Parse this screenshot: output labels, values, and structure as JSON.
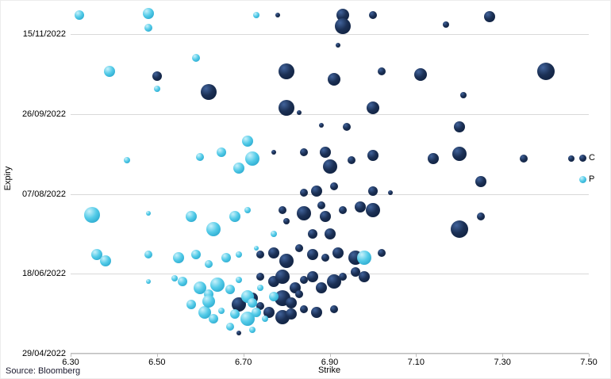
{
  "chart_data": {
    "type": "scatter",
    "subtype": "bubble",
    "title": "",
    "xlabel": "Strike",
    "ylabel": "Expiry",
    "source_note": "Source: Bloomberg",
    "x_axis": {
      "min": 6.3,
      "max": 7.5,
      "ticks": [
        6.3,
        6.5,
        6.7,
        6.9,
        7.1,
        7.3,
        7.5
      ],
      "tick_labels": [
        "6.30",
        "6.50",
        "6.70",
        "6.90",
        "7.10",
        "7.30",
        "7.50"
      ]
    },
    "y_axis": {
      "unit": "days since 29/04/2022 (estimated from gridlines)",
      "min": 0,
      "max": 217,
      "ticks": [
        {
          "days": 0,
          "label": "29/04/2022"
        },
        {
          "days": 50,
          "label": "18/06/2022"
        },
        {
          "days": 100,
          "label": "07/08/2022"
        },
        {
          "days": 150,
          "label": "26/09/2022"
        },
        {
          "days": 200,
          "label": "15/11/2022"
        }
      ],
      "grid": true
    },
    "legend": [
      {
        "name": "C",
        "color": "#16294d"
      },
      {
        "name": "P",
        "color": "#4cc7e6"
      }
    ],
    "legend_position": "right",
    "point_format": "[strike, expiry_days_after_29_04_2022, radius_px]",
    "series": [
      {
        "name": "C",
        "color": "#16294d",
        "gradient": [
          "#41639b",
          "#1b3055",
          "#0a1a36"
        ],
        "points": [
          [
            6.78,
            212,
            3
          ],
          [
            6.93,
            212,
            8
          ],
          [
            7.0,
            212,
            5
          ],
          [
            7.17,
            206,
            4
          ],
          [
            7.27,
            211,
            7
          ],
          [
            6.93,
            205,
            10
          ],
          [
            6.92,
            193,
            3
          ],
          [
            6.5,
            174,
            6
          ],
          [
            6.62,
            164,
            10
          ],
          [
            6.8,
            177,
            10
          ],
          [
            6.91,
            172,
            8
          ],
          [
            7.02,
            177,
            5
          ],
          [
            7.11,
            175,
            8
          ],
          [
            7.4,
            177,
            11
          ],
          [
            6.8,
            154,
            10
          ],
          [
            6.83,
            151,
            3
          ],
          [
            7.0,
            154,
            8
          ],
          [
            6.88,
            143,
            3
          ],
          [
            6.94,
            142,
            5
          ],
          [
            7.21,
            162,
            4
          ],
          [
            7.2,
            142,
            7
          ],
          [
            6.77,
            126,
            3
          ],
          [
            6.84,
            126,
            5
          ],
          [
            6.89,
            126,
            7
          ],
          [
            6.9,
            117,
            9
          ],
          [
            6.95,
            121,
            5
          ],
          [
            7.0,
            124,
            7
          ],
          [
            7.14,
            122,
            7
          ],
          [
            7.2,
            125,
            9
          ],
          [
            7.25,
            108,
            7
          ],
          [
            7.35,
            122,
            5
          ],
          [
            7.46,
            122,
            4
          ],
          [
            6.84,
            101,
            5
          ],
          [
            6.87,
            102,
            7
          ],
          [
            6.91,
            105,
            5
          ],
          [
            7.0,
            102,
            6
          ],
          [
            7.04,
            101,
            3
          ],
          [
            6.79,
            90,
            5
          ],
          [
            6.8,
            83,
            4
          ],
          [
            6.84,
            88,
            9
          ],
          [
            6.88,
            93,
            5
          ],
          [
            6.89,
            86,
            7
          ],
          [
            6.93,
            90,
            5
          ],
          [
            6.97,
            92,
            7
          ],
          [
            7.0,
            90,
            9
          ],
          [
            7.2,
            78,
            11
          ],
          [
            7.25,
            86,
            5
          ],
          [
            6.9,
            75,
            7
          ],
          [
            6.86,
            75,
            6
          ],
          [
            6.74,
            62,
            5
          ],
          [
            6.77,
            63,
            7
          ],
          [
            6.8,
            58,
            9
          ],
          [
            6.83,
            66,
            5
          ],
          [
            6.86,
            62,
            7
          ],
          [
            6.89,
            60,
            5
          ],
          [
            6.92,
            63,
            7
          ],
          [
            6.96,
            60,
            9
          ],
          [
            7.02,
            63,
            5
          ],
          [
            6.74,
            48,
            5
          ],
          [
            6.77,
            45,
            7
          ],
          [
            6.79,
            48,
            9
          ],
          [
            6.82,
            41,
            7
          ],
          [
            6.84,
            46,
            5
          ],
          [
            6.86,
            48,
            7
          ],
          [
            6.79,
            35,
            10
          ],
          [
            6.81,
            32,
            7
          ],
          [
            6.83,
            37,
            5
          ],
          [
            6.88,
            41,
            7
          ],
          [
            6.91,
            45,
            9
          ],
          [
            6.93,
            48,
            5
          ],
          [
            6.96,
            51,
            6
          ],
          [
            6.98,
            48,
            7
          ],
          [
            6.69,
            31,
            9
          ],
          [
            6.72,
            35,
            7
          ],
          [
            6.74,
            30,
            5
          ],
          [
            6.76,
            26,
            7
          ],
          [
            6.79,
            23,
            9
          ],
          [
            6.81,
            25,
            7
          ],
          [
            6.84,
            28,
            5
          ],
          [
            6.87,
            26,
            7
          ],
          [
            6.91,
            28,
            5
          ],
          [
            6.69,
            13,
            3
          ]
        ]
      },
      {
        "name": "P",
        "color": "#4cc7e6",
        "gradient": [
          "#c8f1fb",
          "#53cbe8",
          "#1899c2"
        ],
        "points": [
          [
            6.32,
            212,
            6
          ],
          [
            6.48,
            213,
            7
          ],
          [
            6.48,
            204,
            5
          ],
          [
            6.73,
            212,
            4
          ],
          [
            6.59,
            185,
            5
          ],
          [
            6.39,
            177,
            7
          ],
          [
            6.5,
            166,
            4
          ],
          [
            6.43,
            121,
            4
          ],
          [
            6.6,
            123,
            5
          ],
          [
            6.65,
            126,
            6
          ],
          [
            6.71,
            133,
            7
          ],
          [
            6.72,
            122,
            9
          ],
          [
            6.69,
            116,
            7
          ],
          [
            6.35,
            87,
            10
          ],
          [
            6.48,
            88,
            3
          ],
          [
            6.58,
            86,
            7
          ],
          [
            6.63,
            78,
            9
          ],
          [
            6.68,
            86,
            7
          ],
          [
            6.71,
            90,
            4
          ],
          [
            6.77,
            75,
            4
          ],
          [
            6.36,
            62,
            7
          ],
          [
            6.38,
            58,
            7
          ],
          [
            6.48,
            62,
            5
          ],
          [
            6.55,
            60,
            7
          ],
          [
            6.59,
            62,
            6
          ],
          [
            6.62,
            56,
            5
          ],
          [
            6.66,
            60,
            6
          ],
          [
            6.69,
            62,
            4
          ],
          [
            6.73,
            66,
            3
          ],
          [
            6.98,
            60,
            9
          ],
          [
            6.48,
            45,
            3
          ],
          [
            6.54,
            47,
            4
          ],
          [
            6.56,
            45,
            6
          ],
          [
            6.6,
            41,
            8
          ],
          [
            6.62,
            37,
            6
          ],
          [
            6.64,
            43,
            9
          ],
          [
            6.67,
            40,
            6
          ],
          [
            6.69,
            46,
            4
          ],
          [
            6.71,
            36,
            8
          ],
          [
            6.72,
            32,
            6
          ],
          [
            6.74,
            41,
            4
          ],
          [
            6.77,
            36,
            6
          ],
          [
            6.58,
            31,
            6
          ],
          [
            6.61,
            26,
            8
          ],
          [
            6.63,
            22,
            6
          ],
          [
            6.65,
            27,
            4
          ],
          [
            6.62,
            33,
            8
          ],
          [
            6.68,
            25,
            6
          ],
          [
            6.71,
            22,
            9
          ],
          [
            6.73,
            26,
            6
          ],
          [
            6.75,
            22,
            4
          ],
          [
            6.67,
            17,
            5
          ],
          [
            6.72,
            15,
            4
          ]
        ]
      }
    ]
  },
  "colors": {
    "background": "#ffffff",
    "gridline": "#d9d9d9",
    "axis_line": "#bfbfbf",
    "call_navy": "#16294d",
    "put_cyan": "#4cc7e6",
    "text": "#000000"
  }
}
